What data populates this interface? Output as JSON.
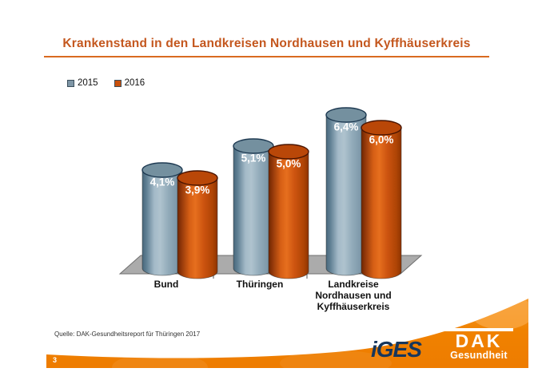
{
  "slide": {
    "title": "Krankenstand in den Landkreisen Nordhausen und Kyffhäuserkreis",
    "title_color": "#C4571E",
    "source": "Quelle: DAK-Gesundheitsreport für Thüringen 2017",
    "page_number": "3"
  },
  "legend": [
    {
      "label": "2015",
      "color": "#7E96A6"
    },
    {
      "label": "2016",
      "color": "#C8500C"
    }
  ],
  "chart_data": {
    "type": "bar",
    "subtype": "3d-cylinder",
    "title": "Krankenstand in den Landkreisen Nordhausen und Kyffhäuserkreis",
    "categories": [
      "Bund",
      "Thüringen",
      "Landkreise Nordhausen und Kyffhäuserkreis"
    ],
    "category_lines": [
      [
        "Bund"
      ],
      [
        "Thüringen"
      ],
      [
        "Landkreise",
        "Nordhausen und",
        "Kyffhäuserkreis"
      ]
    ],
    "series": [
      {
        "name": "2015",
        "color": "#8FA9B8",
        "values": [
          4.1,
          5.1,
          6.4
        ],
        "labels": [
          "4,1%",
          "5,1%",
          "6,4%"
        ]
      },
      {
        "name": "2016",
        "color": "#D05510",
        "values": [
          3.9,
          5.0,
          6.0
        ],
        "labels": [
          "3,9%",
          "5,0%",
          "6,0%"
        ]
      }
    ],
    "unit": "%",
    "xlabel": "",
    "ylabel": "",
    "ylim": [
      0,
      7
    ],
    "grid": false,
    "axes_visible": false,
    "legend_position": "top-left",
    "value_labels": "inside-top"
  },
  "footer": {
    "band_color": "#F08200",
    "iges_logo": "iGES",
    "dak_logo_line1": "DAK",
    "dak_logo_line2": "Gesundheit"
  }
}
